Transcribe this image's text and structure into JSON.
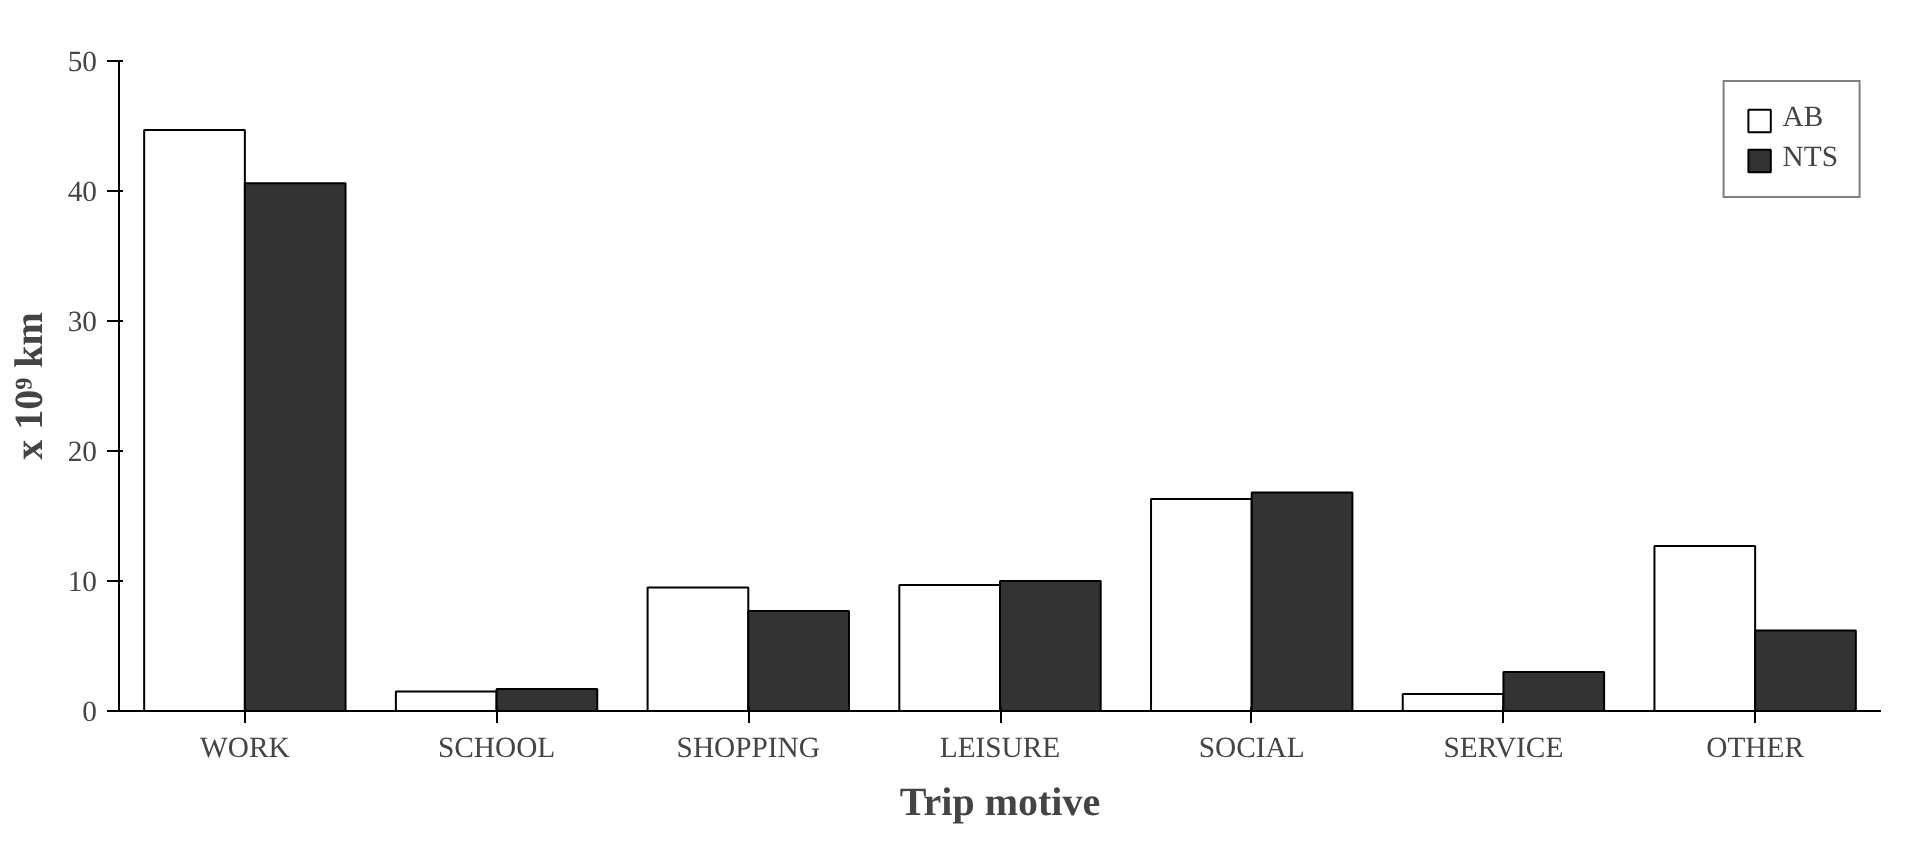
{
  "chart_data": {
    "type": "bar",
    "xlabel": "Trip motive",
    "ylabel": "x 10⁹ km",
    "categories": [
      "WORK",
      "SCHOOL",
      "SHOPPING",
      "LEISURE",
      "SOCIAL",
      "SERVICE",
      "OTHER"
    ],
    "series": [
      {
        "name": "AB",
        "color": "#ffffff",
        "values": [
          44.7,
          1.5,
          9.5,
          9.7,
          16.3,
          1.3,
          12.7
        ]
      },
      {
        "name": "NTS",
        "color": "#333333",
        "values": [
          40.6,
          1.7,
          7.7,
          10.0,
          16.8,
          3.0,
          6.2
        ]
      }
    ],
    "ylim": [
      0,
      50
    ],
    "yticks": [
      0,
      10,
      20,
      30,
      40,
      50
    ],
    "grid": false,
    "legend": "top right"
  }
}
